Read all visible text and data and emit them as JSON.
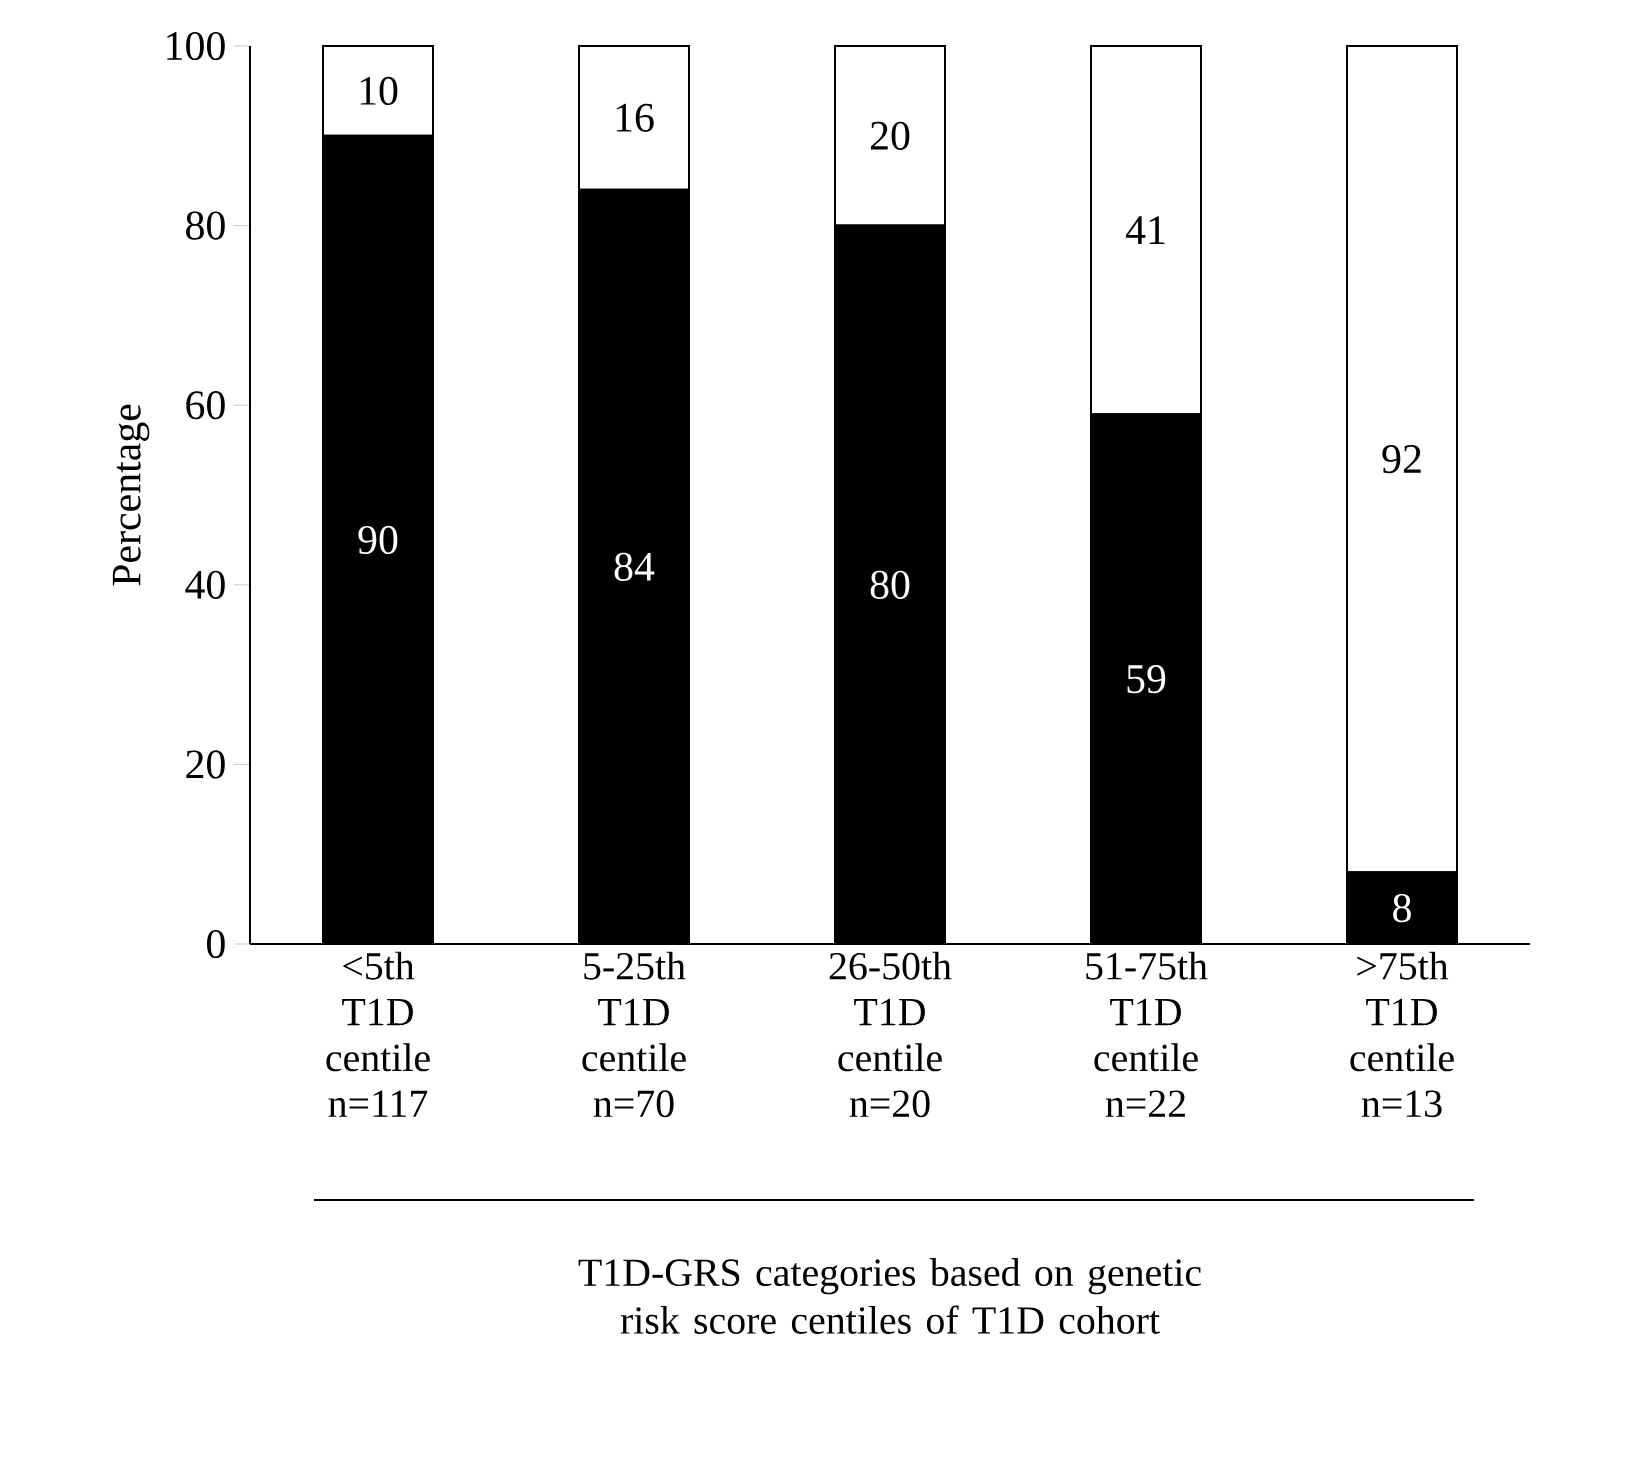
{
  "chart_data": {
    "type": "bar",
    "stacked": true,
    "data_labels": true,
    "categories": [
      "<5th T1D centile n=117",
      "5-25th T1D centile n=70",
      "26-50th T1D centile n=20",
      "51-75th T1D centile n=22",
      ">75th T1D centile n=13"
    ],
    "series": [
      {
        "color": "#000000",
        "values": [
          90,
          84,
          80,
          59,
          8
        ]
      },
      {
        "color": "#ffffff",
        "values": [
          10,
          16,
          20,
          41,
          92
        ]
      }
    ],
    "ylabel": "Percentage",
    "xlabel": "T1D-GRS categories based on genetic risk score centiles of T1D cohort",
    "ylim": [
      0,
      100
    ],
    "yticks": [
      0,
      20,
      40,
      60,
      80,
      100
    ],
    "grid": false
  }
}
